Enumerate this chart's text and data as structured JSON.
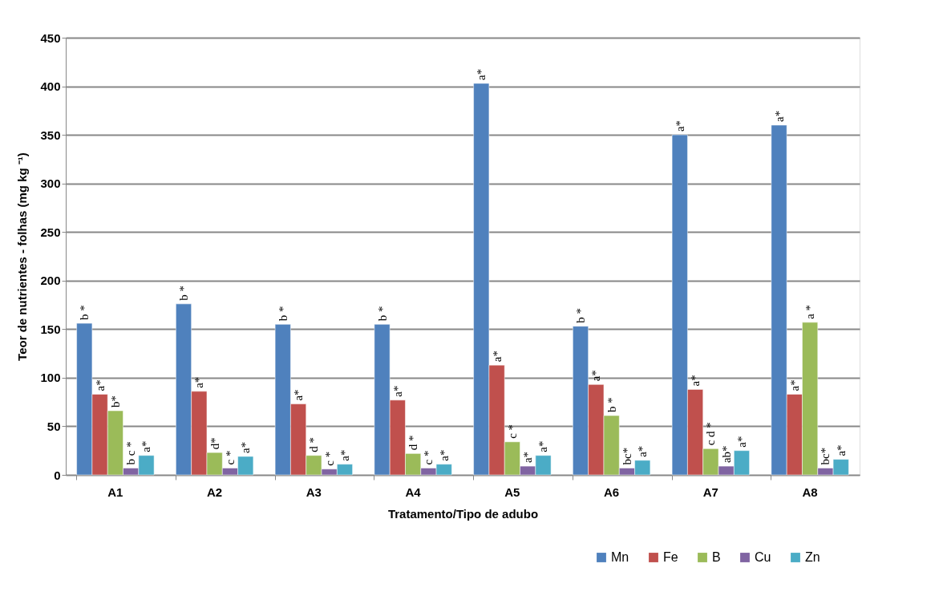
{
  "chart_data": {
    "type": "bar",
    "xlabel": "Tratamento/Tipo de adubo",
    "ylabel": "Teor de nutrientes - folhas (mg kg ⁻¹)",
    "categories": [
      "A1",
      "A2",
      "A3",
      "A4",
      "A5",
      "A6",
      "A7",
      "A8"
    ],
    "series": [
      {
        "name": "Mn",
        "color": "#4f81bd",
        "values": [
          156,
          176,
          155,
          155,
          403,
          153,
          350,
          360
        ],
        "value_labels": [
          "b *",
          "b *",
          "b *",
          "b *",
          "a*",
          "b *",
          "a*",
          "a*"
        ]
      },
      {
        "name": "Fe",
        "color": "#c0504d",
        "values": [
          83,
          86,
          73,
          77,
          113,
          93,
          88,
          83
        ],
        "value_labels": [
          "a*",
          "a*",
          "a*",
          "a*",
          "a*",
          "a*",
          "a*",
          "a*"
        ]
      },
      {
        "name": "B",
        "color": "#9bbb59",
        "values": [
          66,
          23,
          20,
          22,
          34,
          61,
          27,
          157
        ],
        "value_labels": [
          "b*",
          "d*",
          "d *",
          "d *",
          "c *",
          "b *",
          "c d *",
          "a *"
        ]
      },
      {
        "name": "Cu",
        "color": "#8064a2",
        "values": [
          7,
          7,
          6,
          7,
          9,
          7,
          9,
          7
        ],
        "value_labels": [
          "b c *",
          "c *",
          "c *",
          "c *",
          "a*",
          "bc*",
          "ab*",
          "bc*"
        ]
      },
      {
        "name": "Zn",
        "color": "#4bacc6",
        "values": [
          20,
          19,
          11,
          11,
          20,
          15,
          25,
          16
        ],
        "value_labels": [
          "a*",
          "a*",
          "a*",
          "a*",
          "a*",
          "a*",
          "a*",
          "a*"
        ]
      }
    ],
    "ylim": [
      0,
      450
    ],
    "yticks": [
      0,
      50,
      100,
      150,
      200,
      250,
      300,
      350,
      400,
      450
    ],
    "grid": "y",
    "legend": "bottom right"
  }
}
